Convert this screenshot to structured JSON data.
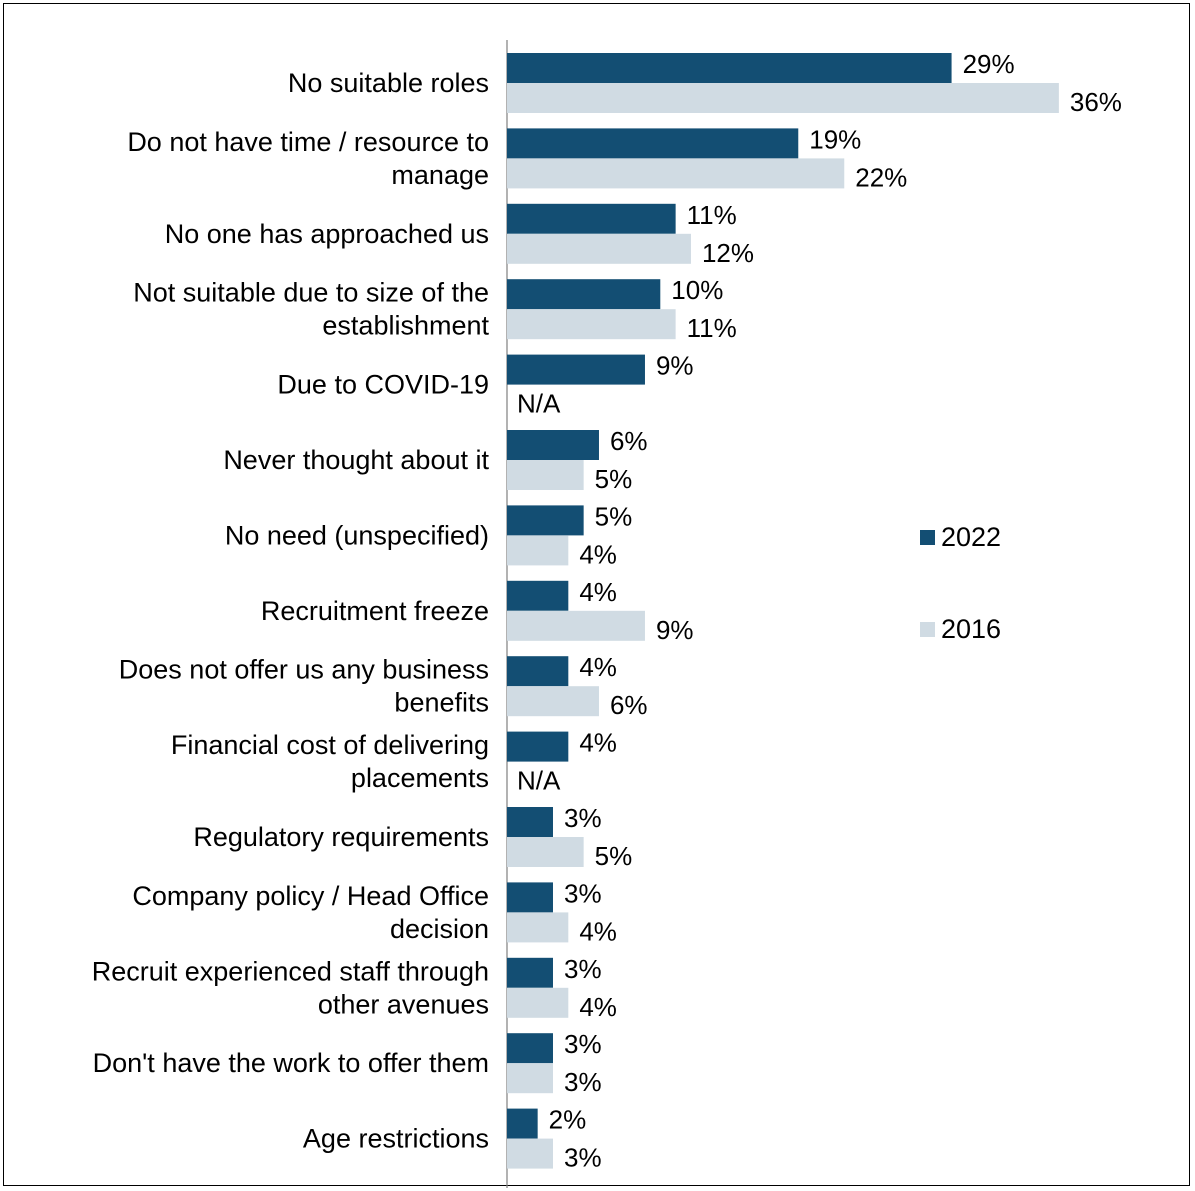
{
  "chart_data": {
    "type": "bar",
    "orientation": "horizontal",
    "categories": [
      [
        "No suitable roles"
      ],
      [
        "Do not have time / resource to",
        "manage"
      ],
      [
        "No one has approached us"
      ],
      [
        "Not suitable due to size of the",
        "establishment"
      ],
      [
        "Due to COVID-19"
      ],
      [
        "Never thought about it"
      ],
      [
        "No need (unspecified)"
      ],
      [
        "Recruitment freeze"
      ],
      [
        "Does not offer us any business",
        "benefits"
      ],
      [
        "Financial cost of delivering",
        "placements"
      ],
      [
        "Regulatory requirements"
      ],
      [
        "Company policy / Head Office",
        "decision"
      ],
      [
        "Recruit experienced staff through",
        "other avenues"
      ],
      [
        "Don't have the work to offer them"
      ],
      [
        "Age restrictions"
      ]
    ],
    "series": [
      {
        "name": "2022",
        "color": "#134e73",
        "values": [
          29,
          19,
          11,
          10,
          9,
          6,
          5,
          4,
          4,
          4,
          3,
          3,
          3,
          3,
          2
        ],
        "labels": [
          "29%",
          "19%",
          "11%",
          "10%",
          "9%",
          "6%",
          "5%",
          "4%",
          "4%",
          "4%",
          "3%",
          "3%",
          "3%",
          "3%",
          "2%"
        ]
      },
      {
        "name": "2016",
        "color": "#d0dbe3",
        "values": [
          36,
          22,
          12,
          11,
          null,
          5,
          4,
          9,
          6,
          null,
          5,
          4,
          4,
          3,
          3
        ],
        "labels": [
          "36%",
          "22%",
          "12%",
          "11%",
          "N/A",
          "5%",
          "4%",
          "9%",
          "6%",
          "N/A",
          "5%",
          "4%",
          "4%",
          "3%",
          "3%"
        ]
      }
    ],
    "xlim": [
      0,
      36
    ],
    "grid": false,
    "legend_position": "right"
  }
}
